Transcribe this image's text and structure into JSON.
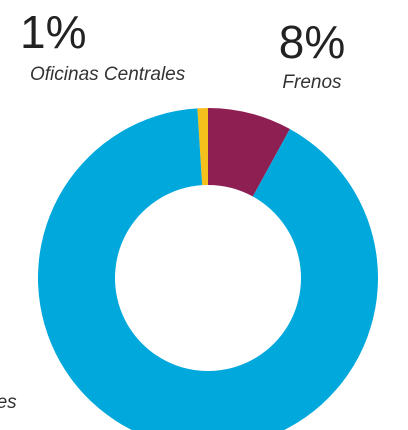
{
  "chart_data": {
    "type": "donut",
    "categories": [
      "Oficinas Centrales",
      "Frenos",
      "nes"
    ],
    "values": [
      1,
      8,
      91
    ],
    "value_labels": [
      "1%",
      "8%",
      null
    ],
    "colors": [
      "#f5c01b",
      "#8e1f52",
      "#00a8dc"
    ]
  }
}
